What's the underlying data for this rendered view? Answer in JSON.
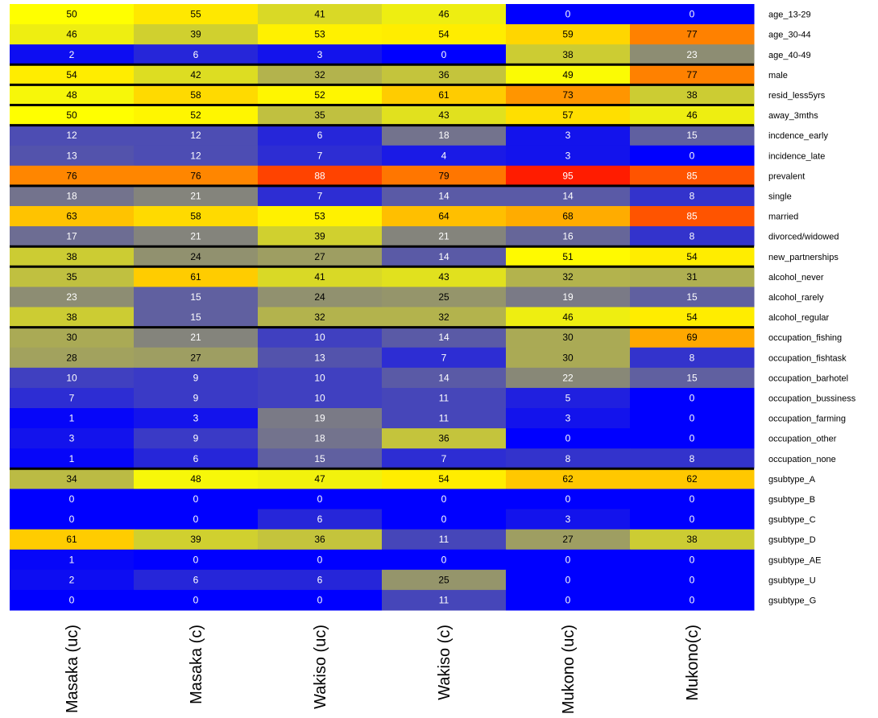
{
  "chart_data": {
    "type": "heatmap",
    "title": "",
    "xlabel": "",
    "ylabel": "",
    "columns": [
      "Masaka (uc)",
      "Masaka (c)",
      "Wakiso (uc)",
      "Wakiso (c)",
      "Mukono (uc)",
      "Mukono(c)"
    ],
    "rows": [
      {
        "label": "age_13-29",
        "values": [
          50,
          55,
          41,
          46,
          0,
          0
        ]
      },
      {
        "label": "age_30-44",
        "values": [
          46,
          39,
          53,
          54,
          59,
          77
        ]
      },
      {
        "label": "age_40-49",
        "values": [
          2,
          6,
          3,
          0,
          38,
          23
        ]
      },
      {
        "label": "male",
        "values": [
          54,
          42,
          32,
          36,
          49,
          77
        ]
      },
      {
        "label": "resid_less5yrs",
        "values": [
          48,
          58,
          52,
          61,
          73,
          38
        ]
      },
      {
        "label": "away_3mths",
        "values": [
          50,
          52,
          35,
          43,
          57,
          46
        ]
      },
      {
        "label": "incdence_early",
        "values": [
          12,
          12,
          6,
          18,
          3,
          15
        ]
      },
      {
        "label": "incidence_late",
        "values": [
          13,
          12,
          7,
          4,
          3,
          0
        ]
      },
      {
        "label": "prevalent",
        "values": [
          76,
          76,
          88,
          79,
          95,
          85
        ]
      },
      {
        "label": "single",
        "values": [
          18,
          21,
          7,
          14,
          14,
          8
        ]
      },
      {
        "label": "married",
        "values": [
          63,
          58,
          53,
          64,
          68,
          85
        ]
      },
      {
        "label": "divorced/widowed",
        "values": [
          17,
          21,
          39,
          21,
          16,
          8
        ]
      },
      {
        "label": "new_partnerships",
        "values": [
          38,
          24,
          27,
          14,
          51,
          54
        ]
      },
      {
        "label": "alcohol_never",
        "values": [
          35,
          61,
          41,
          43,
          32,
          31
        ]
      },
      {
        "label": "alcohol_rarely",
        "values": [
          23,
          15,
          24,
          25,
          19,
          15
        ]
      },
      {
        "label": "alcohol_regular",
        "values": [
          38,
          15,
          32,
          32,
          46,
          54
        ]
      },
      {
        "label": "occupation_fishing",
        "values": [
          30,
          21,
          10,
          14,
          30,
          69
        ]
      },
      {
        "label": "occupation_fishtask",
        "values": [
          28,
          27,
          13,
          7,
          30,
          8
        ]
      },
      {
        "label": "occupation_barhotel",
        "values": [
          10,
          9,
          10,
          14,
          22,
          15
        ]
      },
      {
        "label": "occupation_bussiness",
        "values": [
          7,
          9,
          10,
          11,
          5,
          0
        ]
      },
      {
        "label": "occupation_farming",
        "values": [
          1,
          3,
          19,
          11,
          3,
          0
        ]
      },
      {
        "label": "occupation_other",
        "values": [
          3,
          9,
          18,
          36,
          0,
          0
        ]
      },
      {
        "label": "occupation_none",
        "values": [
          1,
          6,
          15,
          7,
          8,
          8
        ]
      },
      {
        "label": "gsubtype_A",
        "values": [
          34,
          48,
          47,
          54,
          62,
          62
        ]
      },
      {
        "label": "gsubtype_B",
        "values": [
          0,
          0,
          0,
          0,
          0,
          0
        ]
      },
      {
        "label": "gsubtype_C",
        "values": [
          0,
          0,
          6,
          0,
          3,
          0
        ]
      },
      {
        "label": "gsubtype_D",
        "values": [
          61,
          39,
          36,
          11,
          27,
          38
        ]
      },
      {
        "label": "gsubtype_AE",
        "values": [
          1,
          0,
          0,
          0,
          0,
          0
        ]
      },
      {
        "label": "gsubtype_U",
        "values": [
          2,
          6,
          6,
          25,
          0,
          0
        ]
      },
      {
        "label": "gsubtype_G",
        "values": [
          0,
          0,
          0,
          11,
          0,
          0
        ]
      }
    ],
    "group_separators_after_rows": [
      "age_40-49",
      "male",
      "resid_less5yrs",
      "away_3mths",
      "prevalent",
      "divorced/widowed",
      "new_partnerships",
      "alcohol_regular",
      "occupation_none"
    ],
    "color_scale": {
      "stops": [
        "#0000ff",
        "#808080",
        "#ffff00",
        "#ff8c00",
        "#ff0000"
      ],
      "domain": [
        0,
        20,
        50,
        75,
        100
      ]
    },
    "text_colors": {
      "dark_cell": "#ffffff",
      "light_cell": "#000000"
    },
    "legend": "none",
    "grid": false
  }
}
